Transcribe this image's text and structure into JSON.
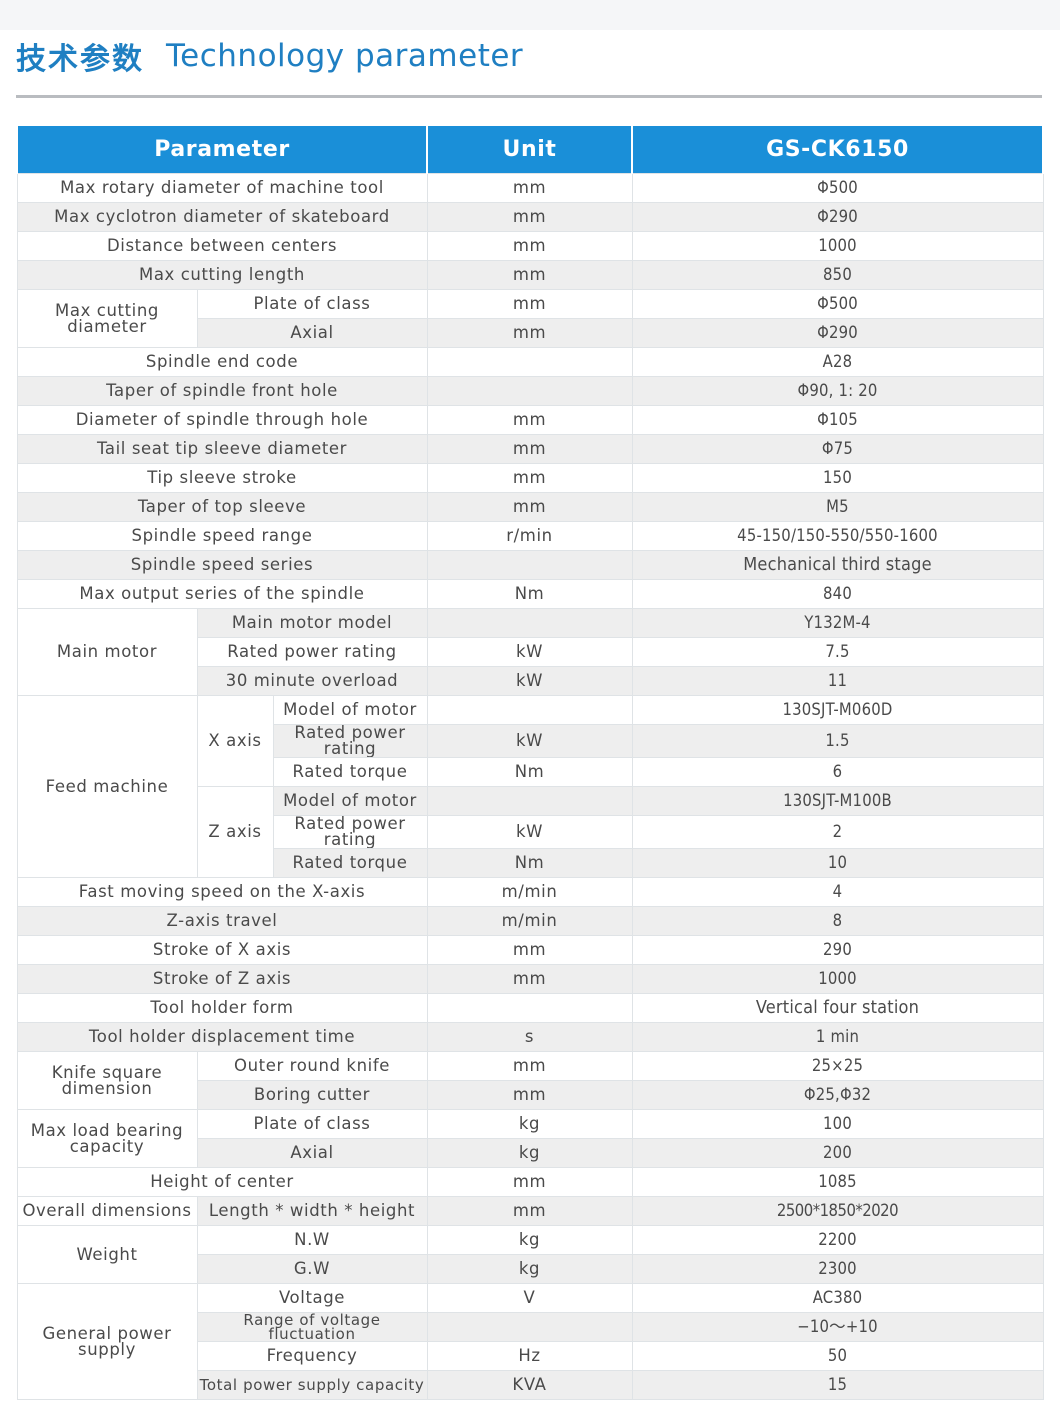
{
  "header": {
    "title_cn": "技术参数",
    "title_en": "Technology parameter"
  },
  "table": {
    "columns": [
      "Parameter",
      "Unit",
      "GS-CK6150"
    ],
    "rows": {
      "r1": {
        "param": "Max rotary diameter of machine tool",
        "unit": "mm",
        "value": "Φ500"
      },
      "r2": {
        "param": "Max cyclotron diameter of skateboard",
        "unit": "mm",
        "value": "Φ290"
      },
      "r3": {
        "param": "Distance between centers",
        "unit": "mm",
        "value": "1000"
      },
      "r4": {
        "param": "Max cutting length",
        "unit": "mm",
        "value": "850"
      },
      "g1": {
        "label": "Max cutting diameter",
        "r1": {
          "param": "Plate of class",
          "unit": "mm",
          "value": "Φ500"
        },
        "r2": {
          "param": "Axial",
          "unit": "mm",
          "value": "Φ290"
        }
      },
      "r5": {
        "param": "Spindle end code",
        "unit": "",
        "value": "A28"
      },
      "r6": {
        "param": "Taper of spindle front hole",
        "unit": "",
        "value": "Φ90, 1: 20"
      },
      "r7": {
        "param": "Diameter of spindle through hole",
        "unit": "mm",
        "value": "Φ105"
      },
      "r8": {
        "param": "Tail seat tip sleeve diameter",
        "unit": "mm",
        "value": "Φ75"
      },
      "r9": {
        "param": "Tip sleeve stroke",
        "unit": "mm",
        "value": "150"
      },
      "r10": {
        "param": "Taper of top sleeve",
        "unit": "mm",
        "value": "M5"
      },
      "r11": {
        "param": "Spindle speed range",
        "unit": "r/min",
        "value": "45-150/150-550/550-1600"
      },
      "r12": {
        "param": "Spindle speed series",
        "unit": "",
        "value": "Mechanical third stage"
      },
      "r13": {
        "param": "Max output series of the spindle",
        "unit": "Nm",
        "value": "840"
      },
      "g2": {
        "label": "Main motor",
        "r1": {
          "param": "Main motor model",
          "unit": "",
          "value": "Y132M-4"
        },
        "r2": {
          "param": "Rated power rating",
          "unit": "kW",
          "value": "7.5"
        },
        "r3": {
          "param": "30 minute overload",
          "unit": "kW",
          "value": "11"
        }
      },
      "g3": {
        "label": "Feed machine",
        "x": {
          "label": "X axis",
          "r1": {
            "param": "Model of motor",
            "unit": "",
            "value": "130SJT-M060D"
          },
          "r2": {
            "param": "Rated power rating",
            "unit": "kW",
            "value": "1.5"
          },
          "r3": {
            "param": "Rated torque",
            "unit": "Nm",
            "value": "6"
          }
        },
        "z": {
          "label": "Z axis",
          "r1": {
            "param": "Model of motor",
            "unit": "",
            "value": "130SJT-M100B"
          },
          "r2": {
            "param": "Rated power rating",
            "unit": "kW",
            "value": "2"
          },
          "r3": {
            "param": "Rated torque",
            "unit": "Nm",
            "value": "10"
          }
        }
      },
      "r14": {
        "param": "Fast moving speed on the X-axis",
        "unit": "m/min",
        "value": "4"
      },
      "r15": {
        "param": "Z-axis travel",
        "unit": "m/min",
        "value": "8"
      },
      "r16": {
        "param": "Stroke of X axis",
        "unit": "mm",
        "value": "290"
      },
      "r17": {
        "param": "Stroke of Z axis",
        "unit": "mm",
        "value": "1000"
      },
      "r18": {
        "param": "Tool holder form",
        "unit": "",
        "value": "Vertical four station"
      },
      "r19": {
        "param": "Tool holder displacement time",
        "unit": "s",
        "value": "1 min"
      },
      "g4": {
        "label": "Knife square dimension",
        "r1": {
          "param": "Outer round knife",
          "unit": "mm",
          "value": "25×25"
        },
        "r2": {
          "param": "Boring cutter",
          "unit": "mm",
          "value": "Φ25,Φ32"
        }
      },
      "g5": {
        "label": "Max load bearing capacity",
        "r1": {
          "param": "Plate of class",
          "unit": "kg",
          "value": "100"
        },
        "r2": {
          "param": "Axial",
          "unit": "kg",
          "value": "200"
        }
      },
      "r20": {
        "param": "Height of center",
        "unit": "mm",
        "value": "1085"
      },
      "r21": {
        "param": "Overall dimensions",
        "sub": "Length * width * height",
        "unit": "mm",
        "value": "2500*1850*2020"
      },
      "g6": {
        "label": "Weight",
        "r1": {
          "param": "N.W",
          "unit": "kg",
          "value": "2200"
        },
        "r2": {
          "param": "G.W",
          "unit": "kg",
          "value": "2300"
        }
      },
      "g7": {
        "label": "General power supply",
        "r1": {
          "param": "Voltage",
          "unit": "V",
          "value": "AC380"
        },
        "r2": {
          "param": "Range of voltage fluctuation",
          "unit": "",
          "value": "−10～+10"
        },
        "r3": {
          "param": "Frequency",
          "unit": "Hz",
          "value": "50"
        },
        "r4": {
          "param": "Total power supply capacity",
          "unit": "KVA",
          "value": "15"
        }
      }
    }
  }
}
